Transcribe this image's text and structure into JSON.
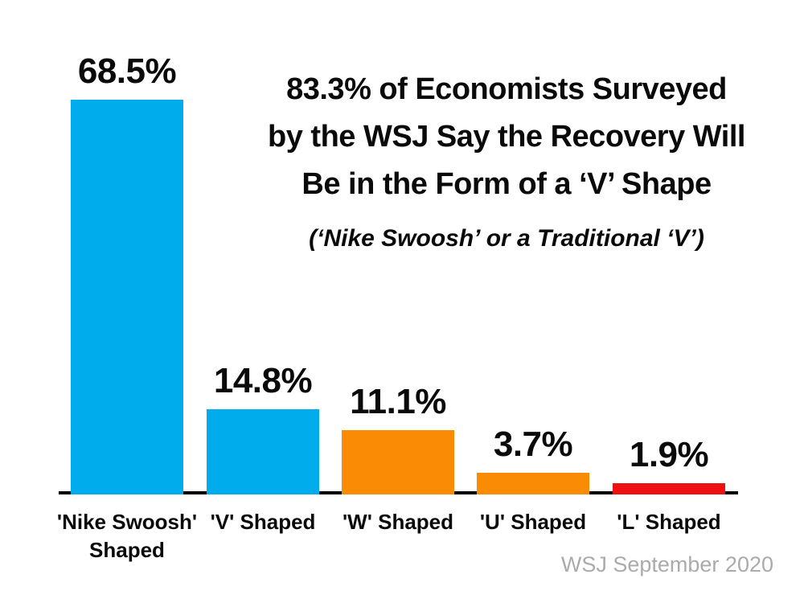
{
  "chart_data": {
    "type": "bar",
    "title": "83.3% of Economists Surveyed by the WSJ Say the Recovery Will Be in the Form of a ‘V’ Shape",
    "title_lines": [
      "83.3% of Economists Surveyed",
      "by the WSJ Say the Recovery Will",
      "Be in the Form of a ‘V’ Shape"
    ],
    "subtitle": "(‘Nike Swoosh’ or a Traditional ‘V’)",
    "categories": [
      "'Nike Swoosh' Shaped",
      "'V' Shaped",
      "'W' Shaped",
      "'U' Shaped",
      "'L' Shaped"
    ],
    "values": [
      68.5,
      14.8,
      11.1,
      3.7,
      1.9
    ],
    "value_labels": [
      "68.5%",
      "14.8%",
      "11.1%",
      "3.7%",
      "1.9%"
    ],
    "bar_colors": [
      "#00ACEC",
      "#00ACEC",
      "#FA8C05",
      "#FA8C05",
      "#EE1111"
    ],
    "xlabel": "",
    "ylabel": "",
    "ylim": [
      0,
      70
    ],
    "grid": false,
    "legend": false,
    "axis_line_color": "#000000",
    "source": "WSJ September 2020",
    "source_color": "#ABABAB"
  }
}
